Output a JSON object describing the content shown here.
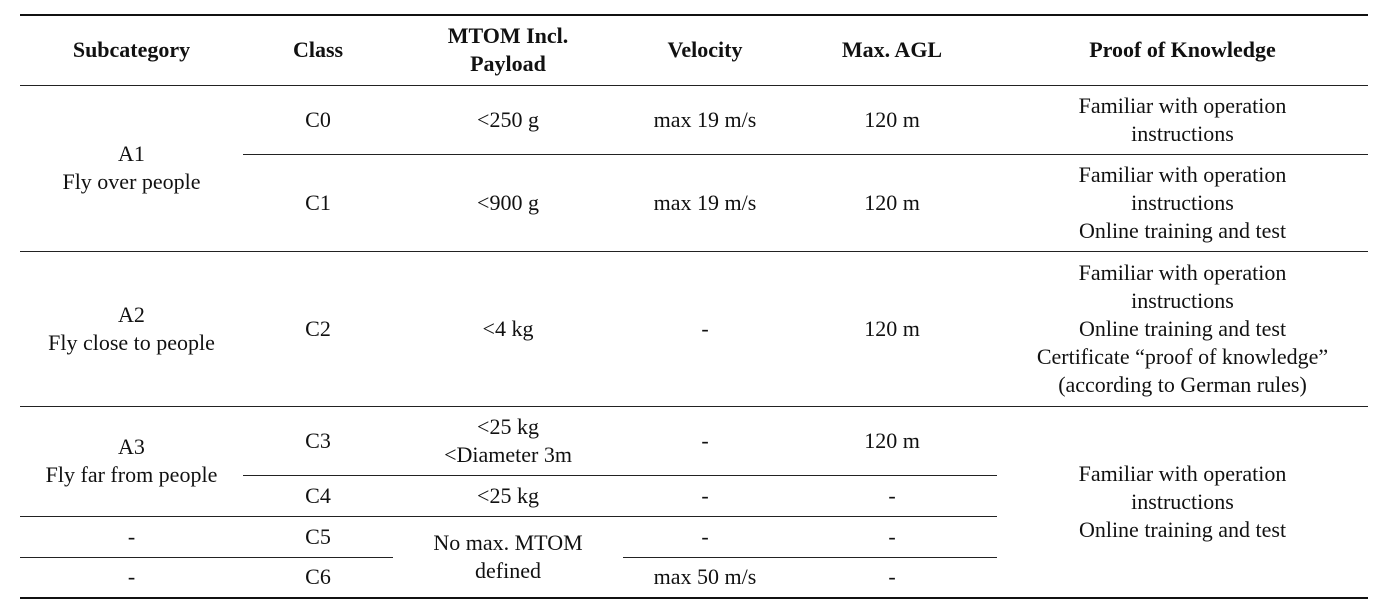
{
  "table": {
    "headers": {
      "subcategory": "Subcategory",
      "class": "Class",
      "mtom": "MTOM Incl.\nPayload",
      "velocity": "Velocity",
      "max_agl": "Max. AGL",
      "proof": "Proof of Knowledge"
    },
    "a1": {
      "subcategory": "A1\nFly over people",
      "c0": {
        "class": "C0",
        "mtom": "<250 g",
        "velocity": "max 19 m/s",
        "agl": "120 m",
        "proof": "Familiar with operation\ninstructions"
      },
      "c1": {
        "class": "C1",
        "mtom": "<900 g",
        "velocity": "max 19 m/s",
        "agl": "120 m",
        "proof": "Familiar with operation\ninstructions\nOnline training and test"
      }
    },
    "a2": {
      "subcategory": "A2\nFly close to people",
      "c2": {
        "class": "C2",
        "mtom": "<4 kg",
        "velocity": "-",
        "agl": "120 m",
        "proof": "Familiar with operation\ninstructions\nOnline training and test\nCertificate “proof of knowledge”\n(according to German rules)"
      }
    },
    "a3": {
      "subcategory": "A3\nFly far from people",
      "c3": {
        "class": "C3",
        "mtom": "<25 kg\n<Diameter 3m",
        "velocity": "-",
        "agl": "120 m"
      },
      "c4": {
        "class": "C4",
        "mtom": "<25 kg",
        "velocity": "-",
        "agl": "-"
      },
      "proof": "Familiar with operation\ninstructions\nOnline training and test"
    },
    "c5": {
      "subcategory": "-",
      "class": "C5",
      "velocity": "-",
      "agl": "-"
    },
    "c6": {
      "subcategory": "-",
      "class": "C6",
      "velocity": "max 50 m/s",
      "agl": "-"
    },
    "c5_c6_mtom": "No max. MTOM\ndefined"
  }
}
